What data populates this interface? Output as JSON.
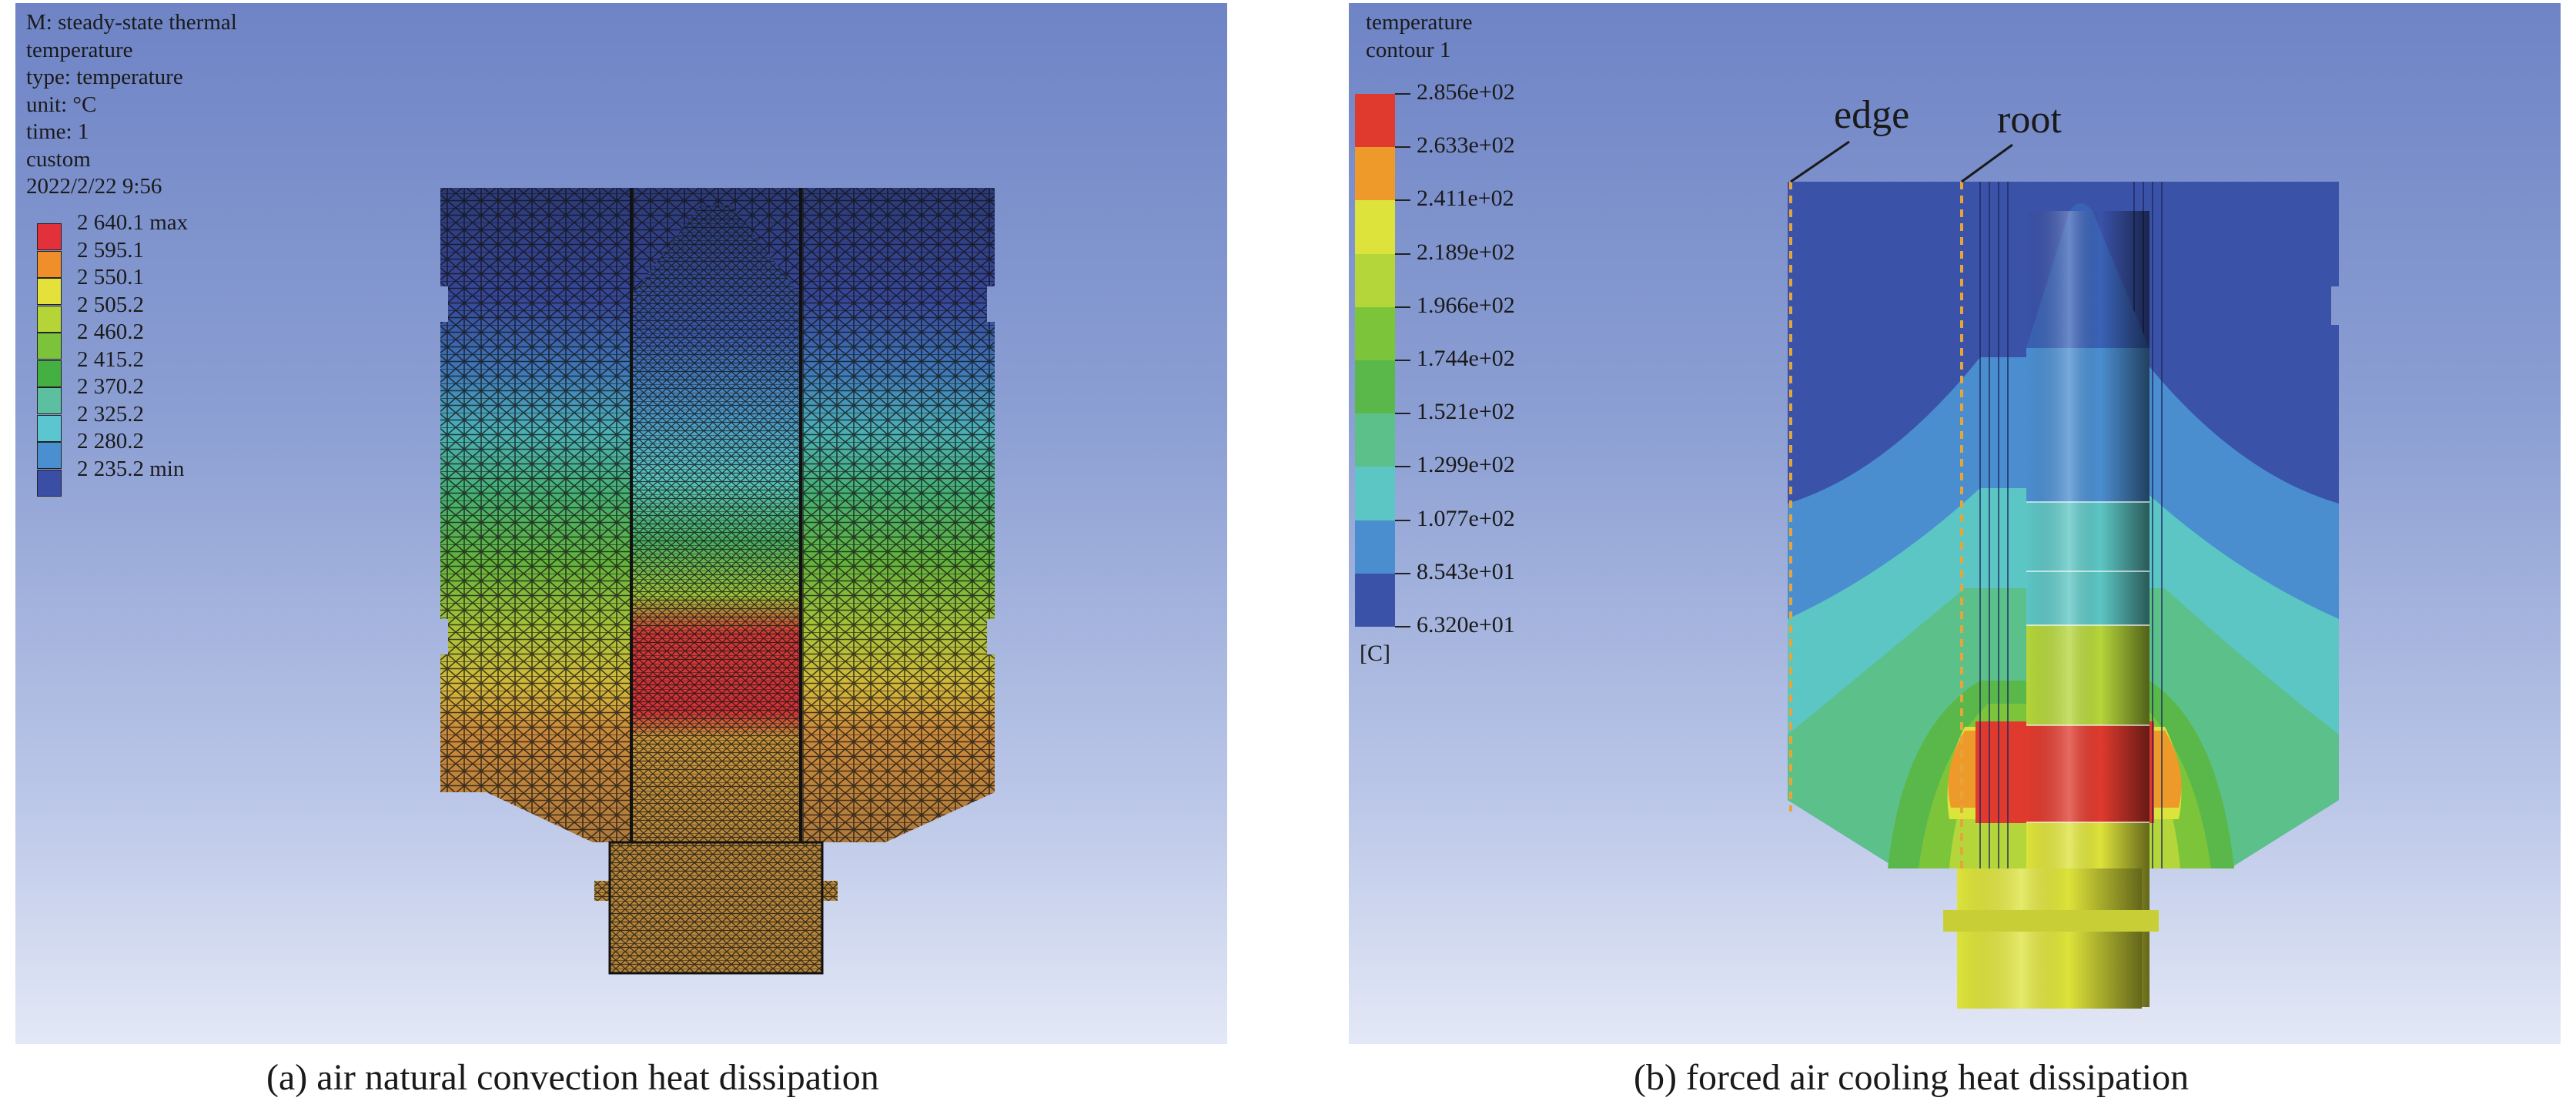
{
  "panel_a": {
    "info_lines": [
      "M: steady-state thermal",
      "temperature",
      "type: temperature",
      "unit: °C",
      "time: 1",
      "custom",
      "2022/2/22 9:56"
    ],
    "legend": [
      {
        "label": "2 640.1 max",
        "color": "#e2313a"
      },
      {
        "label": "2 595.1",
        "color": "#ef8e2a"
      },
      {
        "label": "2 550.1",
        "color": "#e4e23a"
      },
      {
        "label": "2 505.2",
        "color": "#b5d438"
      },
      {
        "label": "2 460.2",
        "color": "#7cc23a"
      },
      {
        "label": "2 415.2",
        "color": "#45b042"
      },
      {
        "label": "2 370.2",
        "color": "#5cc0a0"
      },
      {
        "label": "2 325.2",
        "color": "#5cc6d0"
      },
      {
        "label": "2 280.2",
        "color": "#4a90d0"
      },
      {
        "label": "2 235.2 min",
        "color": "#3a4ea6"
      }
    ],
    "caption": "(a) air natural convection heat dissipation"
  },
  "panel_b": {
    "info_lines": [
      "temperature",
      "contour 1"
    ],
    "legend_values": [
      "2.856e+02",
      "2.633e+02",
      "2.411e+02",
      "2.189e+02",
      "1.966e+02",
      "1.744e+02",
      "1.521e+02",
      "1.299e+02",
      "1.077e+02",
      "8.543e+01",
      "6.320e+01"
    ],
    "legend_colors": [
      "#e03a2e",
      "#ee9a2a",
      "#dde33a",
      "#b4d63a",
      "#7cc43a",
      "#5ab84a",
      "#5cc08a",
      "#5cc6c4",
      "#4a8ed0",
      "#3a52a8"
    ],
    "unit": "[C]",
    "annotations": {
      "edge": "edge",
      "root": "root"
    },
    "caption": "(b) forced air cooling heat dissipation"
  }
}
